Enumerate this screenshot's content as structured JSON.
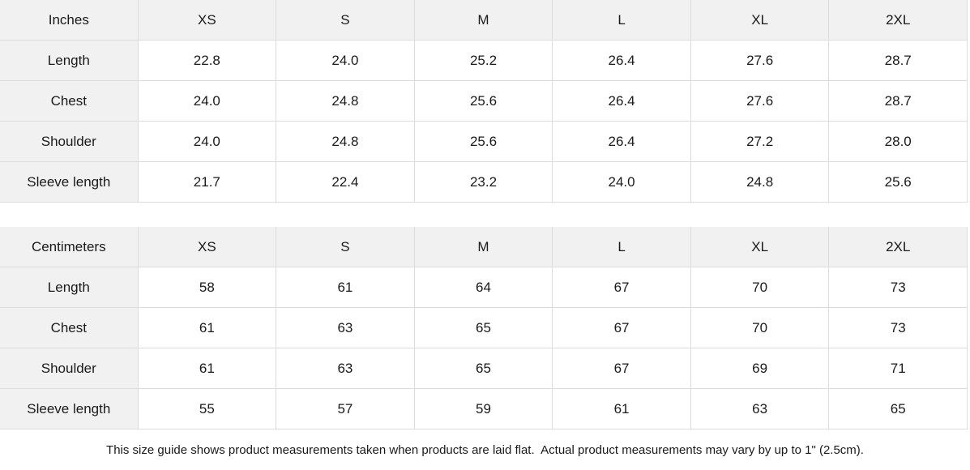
{
  "tables": [
    {
      "unit_label": "Inches",
      "sizes": [
        "XS",
        "S",
        "M",
        "L",
        "XL",
        "2XL"
      ],
      "rows": [
        {
          "label": "Length",
          "values": [
            "22.8",
            "24.0",
            "25.2",
            "26.4",
            "27.6",
            "28.7"
          ]
        },
        {
          "label": "Chest",
          "values": [
            "24.0",
            "24.8",
            "25.6",
            "26.4",
            "27.6",
            "28.7"
          ]
        },
        {
          "label": "Shoulder",
          "values": [
            "24.0",
            "24.8",
            "25.6",
            "26.4",
            "27.2",
            "28.0"
          ]
        },
        {
          "label": "Sleeve length",
          "values": [
            "21.7",
            "22.4",
            "23.2",
            "24.0",
            "24.8",
            "25.6"
          ]
        }
      ]
    },
    {
      "unit_label": "Centimeters",
      "sizes": [
        "XS",
        "S",
        "M",
        "L",
        "XL",
        "2XL"
      ],
      "rows": [
        {
          "label": "Length",
          "values": [
            "58",
            "61",
            "64",
            "67",
            "70",
            "73"
          ]
        },
        {
          "label": "Chest",
          "values": [
            "61",
            "63",
            "65",
            "67",
            "70",
            "73"
          ]
        },
        {
          "label": "Shoulder",
          "values": [
            "61",
            "63",
            "65",
            "67",
            "69",
            "71"
          ]
        },
        {
          "label": "Sleeve length",
          "values": [
            "55",
            "57",
            "59",
            "61",
            "63",
            "65"
          ]
        }
      ]
    }
  ],
  "footer": {
    "note": "This size guide shows product measurements taken when products are laid flat.  Actual product measurements may vary by up to 1\" (2.5cm)."
  },
  "colors": {
    "header_bg": "#f0f1f0",
    "border": "#dcdcdc",
    "text": "#1a1a1a",
    "background": "#ffffff"
  }
}
